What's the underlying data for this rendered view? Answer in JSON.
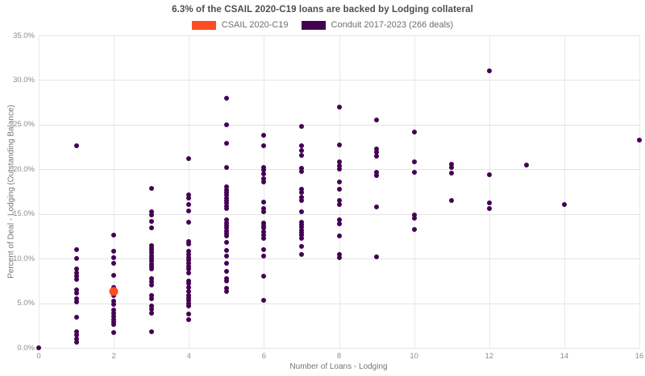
{
  "header": {
    "title": "6.3% of the CSAIL 2020-C19 loans are backed by Lodging collateral"
  },
  "chart_data": {
    "type": "scatter",
    "title": "6.3% of the CSAIL 2020-C19 loans are backed by Lodging collateral",
    "xlabel": "Number of Loans - Lodging",
    "ylabel": "Percent of Deal - Lodging (Outstanding Balance)",
    "xlim": [
      0,
      16
    ],
    "ylim": [
      0,
      35
    ],
    "grid": true,
    "legend_position": "top-center",
    "x_ticks": [
      0,
      2,
      4,
      6,
      8,
      10,
      12,
      14,
      16
    ],
    "x_tick_labels": [
      "0",
      "2",
      "4",
      "6",
      "8",
      "10",
      "12",
      "14",
      "16"
    ],
    "y_ticks": [
      0,
      5,
      10,
      15,
      20,
      25,
      30,
      35
    ],
    "y_tick_labels": [
      "0.0%",
      "5.0%",
      "10.0%",
      "15.0%",
      "20.0%",
      "25.0%",
      "30.0%",
      "35.0%"
    ],
    "series": [
      {
        "name": "CSAIL 2020-C19",
        "color": "#fb4d21",
        "marker_size": 11,
        "points": [
          [
            2,
            6.3
          ]
        ]
      },
      {
        "name": "Conduit 2017-2023 (266 deals)",
        "color": "#440154",
        "marker_size": 6,
        "points": [
          [
            0,
            0.0
          ],
          [
            1,
            22.6
          ],
          [
            1,
            11.0
          ],
          [
            1,
            10.0
          ],
          [
            1,
            8.8
          ],
          [
            1,
            8.4
          ],
          [
            1,
            8.0
          ],
          [
            1,
            7.7
          ],
          [
            1,
            6.5
          ],
          [
            1,
            6.1
          ],
          [
            1,
            5.5
          ],
          [
            1,
            5.1
          ],
          [
            1,
            3.4
          ],
          [
            1,
            1.8
          ],
          [
            1,
            1.4
          ],
          [
            1,
            1.0
          ],
          [
            1,
            0.6
          ],
          [
            2,
            12.6
          ],
          [
            2,
            10.8
          ],
          [
            2,
            10.1
          ],
          [
            2,
            9.5
          ],
          [
            2,
            8.1
          ],
          [
            2,
            6.8
          ],
          [
            2,
            5.9
          ],
          [
            2,
            5.2
          ],
          [
            2,
            4.9
          ],
          [
            2,
            4.2
          ],
          [
            2,
            3.9
          ],
          [
            2,
            3.5
          ],
          [
            2,
            3.2
          ],
          [
            2,
            2.9
          ],
          [
            2,
            2.6
          ],
          [
            2,
            1.7
          ],
          [
            3,
            17.9
          ],
          [
            3,
            15.2
          ],
          [
            3,
            14.9
          ],
          [
            3,
            14.2
          ],
          [
            3,
            13.4
          ],
          [
            3,
            11.5
          ],
          [
            3,
            11.2
          ],
          [
            3,
            10.9
          ],
          [
            3,
            10.6
          ],
          [
            3,
            10.3
          ],
          [
            3,
            10.0
          ],
          [
            3,
            9.7
          ],
          [
            3,
            9.4
          ],
          [
            3,
            9.1
          ],
          [
            3,
            8.8
          ],
          [
            3,
            7.8
          ],
          [
            3,
            7.4
          ],
          [
            3,
            7.0
          ],
          [
            3,
            5.9
          ],
          [
            3,
            5.5
          ],
          [
            3,
            4.7
          ],
          [
            3,
            4.3
          ],
          [
            3,
            3.9
          ],
          [
            3,
            1.8
          ],
          [
            4,
            21.2
          ],
          [
            4,
            17.1
          ],
          [
            4,
            16.8
          ],
          [
            4,
            16.1
          ],
          [
            4,
            15.3
          ],
          [
            4,
            14.1
          ],
          [
            4,
            11.9
          ],
          [
            4,
            11.6
          ],
          [
            4,
            10.8
          ],
          [
            4,
            10.5
          ],
          [
            4,
            10.1
          ],
          [
            4,
            9.8
          ],
          [
            4,
            9.5
          ],
          [
            4,
            9.1
          ],
          [
            4,
            8.8
          ],
          [
            4,
            8.4
          ],
          [
            4,
            7.5
          ],
          [
            4,
            7.2
          ],
          [
            4,
            6.8
          ],
          [
            4,
            6.3
          ],
          [
            4,
            5.9
          ],
          [
            4,
            5.6
          ],
          [
            4,
            5.3
          ],
          [
            4,
            5.0
          ],
          [
            4,
            4.7
          ],
          [
            4,
            3.8
          ],
          [
            4,
            3.2
          ],
          [
            5,
            28.0
          ],
          [
            5,
            25.0
          ],
          [
            5,
            22.9
          ],
          [
            5,
            20.2
          ],
          [
            5,
            18.0
          ],
          [
            5,
            17.7
          ],
          [
            5,
            17.4
          ],
          [
            5,
            17.1
          ],
          [
            5,
            16.8
          ],
          [
            5,
            16.5
          ],
          [
            5,
            16.2
          ],
          [
            5,
            15.9
          ],
          [
            5,
            15.6
          ],
          [
            5,
            14.3
          ],
          [
            5,
            14.0
          ],
          [
            5,
            13.7
          ],
          [
            5,
            13.4
          ],
          [
            5,
            13.1
          ],
          [
            5,
            12.8
          ],
          [
            5,
            12.5
          ],
          [
            5,
            11.8
          ],
          [
            5,
            10.9
          ],
          [
            5,
            10.3
          ],
          [
            5,
            9.5
          ],
          [
            5,
            8.6
          ],
          [
            5,
            7.8
          ],
          [
            5,
            7.5
          ],
          [
            5,
            6.7
          ],
          [
            5,
            6.3
          ],
          [
            6,
            23.8
          ],
          [
            6,
            22.6
          ],
          [
            6,
            20.2
          ],
          [
            6,
            19.9
          ],
          [
            6,
            19.5
          ],
          [
            6,
            18.9
          ],
          [
            6,
            18.6
          ],
          [
            6,
            16.3
          ],
          [
            6,
            15.6
          ],
          [
            6,
            15.2
          ],
          [
            6,
            14.0
          ],
          [
            6,
            13.7
          ],
          [
            6,
            13.4
          ],
          [
            6,
            13.0
          ],
          [
            6,
            12.6
          ],
          [
            6,
            12.3
          ],
          [
            6,
            11.0
          ],
          [
            6,
            10.3
          ],
          [
            6,
            8.0
          ],
          [
            6,
            5.3
          ],
          [
            7,
            24.8
          ],
          [
            7,
            22.6
          ],
          [
            7,
            22.1
          ],
          [
            7,
            21.6
          ],
          [
            7,
            20.1
          ],
          [
            7,
            19.8
          ],
          [
            7,
            17.8
          ],
          [
            7,
            17.4
          ],
          [
            7,
            16.9
          ],
          [
            7,
            16.5
          ],
          [
            7,
            15.2
          ],
          [
            7,
            14.1
          ],
          [
            7,
            13.8
          ],
          [
            7,
            13.5
          ],
          [
            7,
            13.2
          ],
          [
            7,
            12.9
          ],
          [
            7,
            12.6
          ],
          [
            7,
            12.3
          ],
          [
            7,
            11.4
          ],
          [
            7,
            10.5
          ],
          [
            8,
            27.0
          ],
          [
            8,
            22.7
          ],
          [
            8,
            20.8
          ],
          [
            8,
            20.4
          ],
          [
            8,
            20.0
          ],
          [
            8,
            18.6
          ],
          [
            8,
            17.8
          ],
          [
            8,
            16.5
          ],
          [
            8,
            16.1
          ],
          [
            8,
            14.3
          ],
          [
            8,
            13.9
          ],
          [
            8,
            12.5
          ],
          [
            8,
            10.5
          ],
          [
            8,
            10.1
          ],
          [
            9,
            25.5
          ],
          [
            9,
            22.3
          ],
          [
            9,
            21.9
          ],
          [
            9,
            21.5
          ],
          [
            9,
            19.7
          ],
          [
            9,
            19.3
          ],
          [
            9,
            15.8
          ],
          [
            9,
            10.2
          ],
          [
            10,
            24.2
          ],
          [
            10,
            20.8
          ],
          [
            10,
            19.7
          ],
          [
            10,
            14.9
          ],
          [
            10,
            14.5
          ],
          [
            10,
            13.3
          ],
          [
            11,
            20.6
          ],
          [
            11,
            20.2
          ],
          [
            11,
            19.6
          ],
          [
            11,
            16.5
          ],
          [
            12,
            31.0
          ],
          [
            12,
            19.4
          ],
          [
            12,
            16.2
          ],
          [
            12,
            15.6
          ],
          [
            13,
            20.5
          ],
          [
            14,
            16.1
          ],
          [
            16,
            23.3
          ]
        ]
      }
    ]
  },
  "colors": {
    "csail_accent": "#fb4d21",
    "conduit_accent": "#440154",
    "gridline": "#e4e4e4",
    "tick_text": "#8c8c8c",
    "title_text": "#4d4d4d"
  }
}
